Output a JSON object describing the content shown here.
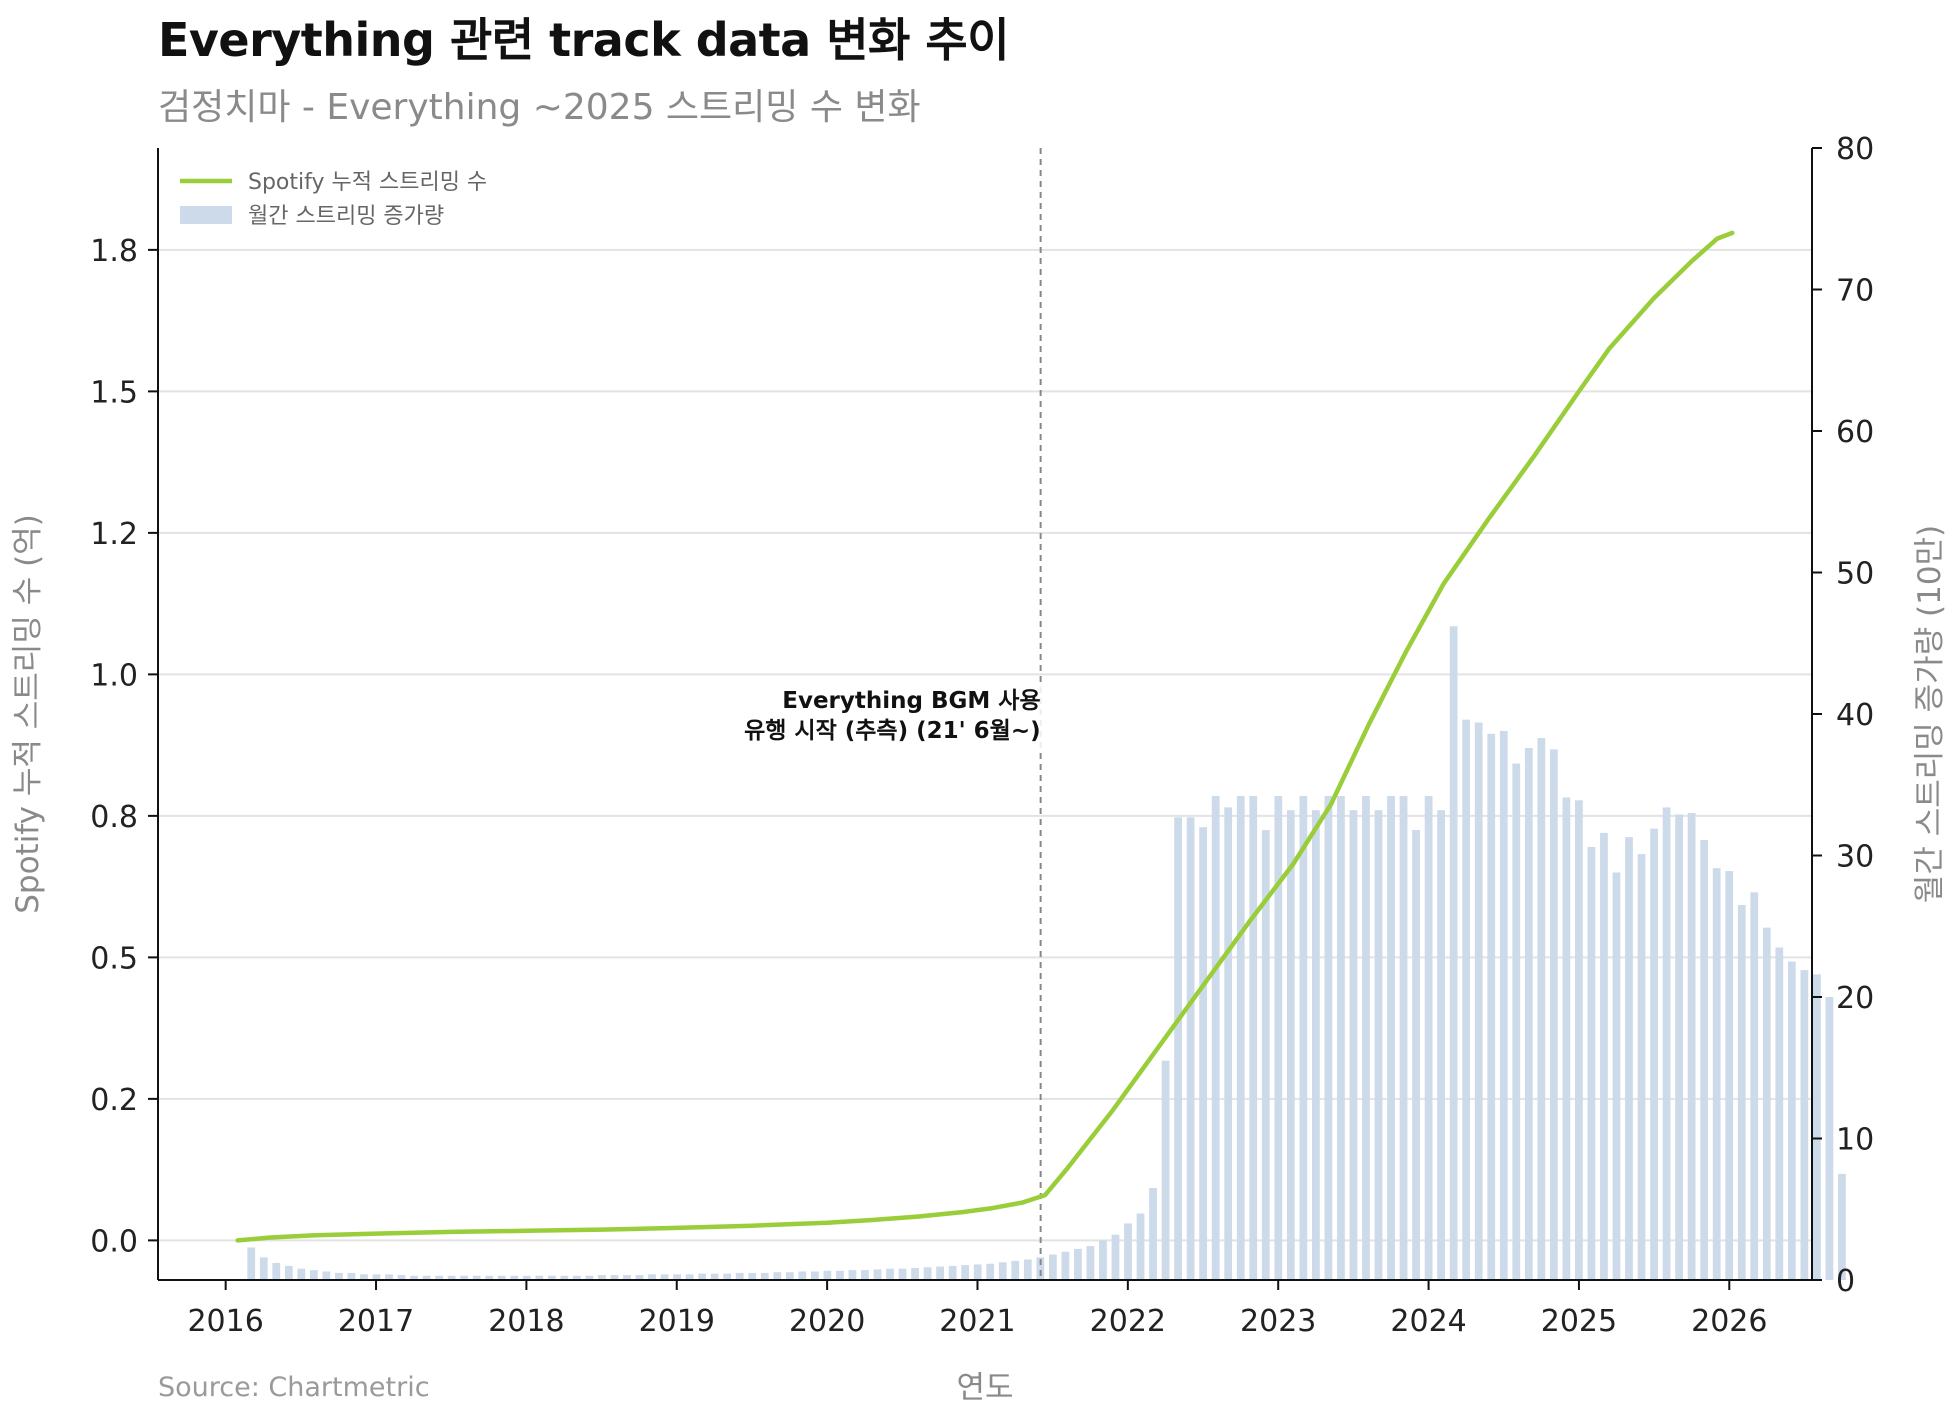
{
  "title": "Everything 관련 track data 변화 추이",
  "subtitle": "검정치마 - Everything ~2025 스트리밍 수 변화",
  "source": "Source: Chartmetric",
  "colors": {
    "line": "#9acd3a",
    "bar": "#cddaea",
    "grid": "#e3e3e3",
    "vline": "#888888"
  },
  "chart_data": {
    "type": "line+bar",
    "xlabel": "연도",
    "ylabel_left": "Spotify 누적 스트리밍 수 (억)",
    "ylabel_right": "월간 스트리밍 증가량 (10만)",
    "xlim": [
      2015.55,
      2026.55
    ],
    "ylim_left": [
      -0.07,
      1.93
    ],
    "ylim_right": [
      0,
      80
    ],
    "x_ticks": [
      2016,
      2017,
      2018,
      2019,
      2020,
      2021,
      2022,
      2023,
      2024,
      2025,
      2026
    ],
    "y_ticks_left": [
      "0.0",
      "0.2",
      "0.5",
      "0.8",
      "1.0",
      "1.2",
      "1.5",
      "1.8"
    ],
    "y_tick_values_left": [
      0.0,
      0.25,
      0.5,
      0.75,
      1.0,
      1.25,
      1.5,
      1.75
    ],
    "y_ticks_right": [
      0,
      10,
      20,
      30,
      40,
      50,
      60,
      70,
      80
    ],
    "grid": true,
    "legend": {
      "position": "top-left",
      "entries": [
        "Spotify 누적 스트리밍 수",
        "월간 스트리밍 증가량"
      ]
    },
    "annotation": {
      "x": 2021.42,
      "lines": [
        "Everything BGM 사용",
        "유행 시작 (추측) (21' 6월~)"
      ]
    },
    "series": [
      {
        "name": "Spotify 누적 스트리밍 수",
        "axis": "left",
        "kind": "line",
        "x": [
          2016.08,
          2016.3,
          2016.6,
          2017.0,
          2017.5,
          2018.0,
          2018.5,
          2019.0,
          2019.5,
          2020.0,
          2020.3,
          2020.6,
          2020.9,
          2021.1,
          2021.3,
          2021.45,
          2021.6,
          2021.9,
          2022.2,
          2022.5,
          2022.8,
          2023.1,
          2023.35,
          2023.6,
          2023.85,
          2024.1,
          2024.4,
          2024.7,
          2025.0,
          2025.2,
          2025.5,
          2025.75,
          2025.92,
          2026.02
        ],
        "values": [
          0.0,
          0.005,
          0.009,
          0.012,
          0.015,
          0.017,
          0.019,
          0.022,
          0.026,
          0.031,
          0.036,
          0.042,
          0.05,
          0.057,
          0.067,
          0.08,
          0.128,
          0.23,
          0.34,
          0.45,
          0.56,
          0.665,
          0.77,
          0.91,
          1.04,
          1.16,
          1.275,
          1.385,
          1.5,
          1.575,
          1.665,
          1.73,
          1.77,
          1.78
        ]
      },
      {
        "name": "월간 스트리밍 증가량",
        "axis": "right",
        "kind": "bar",
        "start": 2016.17,
        "step": 0.0833,
        "values": [
          2.3,
          1.6,
          1.2,
          1.0,
          0.8,
          0.7,
          0.6,
          0.5,
          0.5,
          0.4,
          0.4,
          0.4,
          0.35,
          0.3,
          0.3,
          0.3,
          0.3,
          0.3,
          0.3,
          0.3,
          0.3,
          0.3,
          0.3,
          0.3,
          0.3,
          0.3,
          0.3,
          0.3,
          0.35,
          0.35,
          0.35,
          0.35,
          0.4,
          0.4,
          0.4,
          0.4,
          0.45,
          0.45,
          0.45,
          0.5,
          0.5,
          0.5,
          0.55,
          0.55,
          0.6,
          0.6,
          0.65,
          0.65,
          0.7,
          0.7,
          0.75,
          0.8,
          0.8,
          0.85,
          0.9,
          0.95,
          1.0,
          1.05,
          1.1,
          1.15,
          1.25,
          1.35,
          1.45,
          1.6,
          1.8,
          2.0,
          2.2,
          2.4,
          2.8,
          3.2,
          4.0,
          4.7,
          6.5,
          15.5,
          32.7,
          32.7,
          32.0,
          34.2,
          33.4,
          34.2,
          34.2,
          31.8,
          34.2,
          33.2,
          34.2,
          33.2,
          34.2,
          34.2,
          33.2,
          34.2,
          33.2,
          34.2,
          34.2,
          31.8,
          34.2,
          33.2,
          46.2,
          39.6,
          39.4,
          38.6,
          38.8,
          36.5,
          37.6,
          38.3,
          37.5,
          34.1,
          33.9,
          30.6,
          31.6,
          28.8,
          31.3,
          30.1,
          31.9,
          33.4,
          32.9,
          33.0,
          31.1,
          29.1,
          28.9,
          26.5,
          27.4,
          24.9,
          23.5,
          22.5,
          21.9,
          21.6,
          20.0,
          7.5
        ]
      }
    ]
  }
}
